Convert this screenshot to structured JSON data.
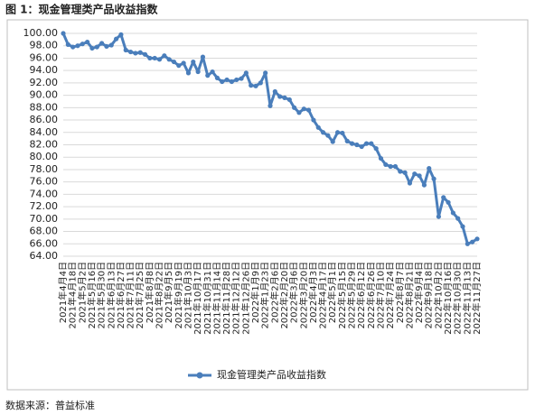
{
  "chart_data": {
    "type": "line",
    "title": "图 1：现金管理类产品收益指数",
    "source": "数据来源：普益标准",
    "categories": [
      "2021年4月4日",
      null,
      "2021年4月18日",
      null,
      "2021年5月2日",
      null,
      "2021年5月16日",
      null,
      "2021年5月30日",
      null,
      "2021年6月13日",
      null,
      "2021年6月27日",
      null,
      "2021年7月11日",
      null,
      "2021年7月25日",
      null,
      "2021年8月8日",
      null,
      "2021年8月22日",
      null,
      "2021年9月5日",
      null,
      "2021年9月19日",
      null,
      "2021年10月3日",
      null,
      "2021年10月17日",
      null,
      "2021年10月31日",
      null,
      "2021年11月14日",
      null,
      "2021年11月28日",
      null,
      "2021年12月12日",
      null,
      "2021年12月26日",
      null,
      "2022年1月9日",
      null,
      "2022年1月23日",
      null,
      "2022年2月6日",
      null,
      "2022年2月20日",
      null,
      "2022年3月6日",
      null,
      "2022年3月20日",
      null,
      "2022年4月3日",
      null,
      "2022年4月17日",
      null,
      "2022年5月1日",
      null,
      "2022年5月15日",
      null,
      "2022年5月29日",
      null,
      "2022年6月12日",
      null,
      "2022年6月26日",
      null,
      "2022年7月10日",
      null,
      "2022年7月24日",
      null,
      "2022年8月7日",
      null,
      "2022年8月21日",
      null,
      "2022年9月4日",
      null,
      "2022年9月18日",
      null,
      "2022年10月2日",
      null,
      "2022年10月16日",
      null,
      "2022年10月30日",
      null,
      "2022年11月13日",
      null,
      "2022年11月27日"
    ],
    "series": [
      {
        "name": "现金管理类产品收益指数",
        "color": "#4a7ebb",
        "values": [
          100.0,
          98.2,
          97.8,
          98.0,
          98.3,
          98.6,
          97.6,
          97.8,
          98.4,
          97.9,
          98.1,
          99.1,
          99.8,
          97.3,
          97.0,
          96.8,
          96.9,
          96.6,
          96.0,
          96.0,
          95.8,
          96.4,
          95.8,
          95.4,
          94.8,
          95.2,
          93.6,
          95.4,
          93.8,
          96.2,
          93.2,
          93.8,
          92.8,
          92.2,
          92.5,
          92.2,
          92.5,
          92.7,
          93.6,
          91.6,
          91.5,
          92.0,
          93.6,
          88.3,
          90.6,
          89.8,
          89.6,
          89.3,
          88.0,
          87.2,
          87.8,
          87.6,
          86.0,
          84.8,
          84.0,
          83.5,
          82.5,
          84.0,
          83.9,
          82.6,
          82.2,
          82.0,
          81.7,
          82.2,
          82.2,
          81.4,
          79.8,
          78.8,
          78.5,
          78.5,
          77.7,
          77.5,
          75.8,
          77.3,
          77.0,
          75.5,
          78.2,
          76.5,
          70.4,
          73.5,
          72.7,
          71.0,
          70.1,
          68.8,
          66.0,
          66.3,
          66.8
        ]
      }
    ],
    "ylim": [
      64,
      100
    ],
    "yticks": [
      {
        "value": 64,
        "label": "64.00"
      },
      {
        "value": 66,
        "label": "66.00"
      },
      {
        "value": 68,
        "label": "68.00"
      },
      {
        "value": 70,
        "label": "70.00"
      },
      {
        "value": 72,
        "label": "72.00"
      },
      {
        "value": 74,
        "label": "74.00"
      },
      {
        "value": 76,
        "label": "76.00"
      },
      {
        "value": 78,
        "label": "78.00"
      },
      {
        "value": 80,
        "label": "80.00"
      },
      {
        "value": 82,
        "label": "82.00"
      },
      {
        "value": 84,
        "label": "84.00"
      },
      {
        "value": 86,
        "label": "86.00"
      },
      {
        "value": 88,
        "label": "88.00"
      },
      {
        "value": 90,
        "label": "90.00"
      },
      {
        "value": 92,
        "label": "92.00"
      },
      {
        "value": 94,
        "label": "94.00"
      },
      {
        "value": 96,
        "label": "96.00"
      },
      {
        "value": 98,
        "label": "98.00"
      },
      {
        "value": 100,
        "label": "100.00"
      }
    ],
    "grid": true,
    "legend": "bottom"
  }
}
